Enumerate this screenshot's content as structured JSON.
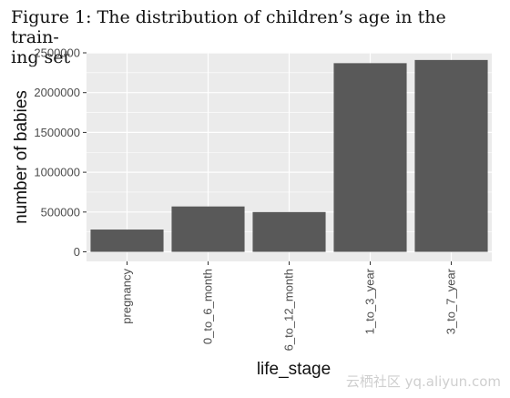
{
  "caption": {
    "line1": "Figure 1: The distribution of children’s age in the train-",
    "line2": "ing set"
  },
  "watermark": "云栖社区 yq.aliyun.com",
  "colors": {
    "panel": "#ebebeb",
    "grid": "#ffffff",
    "bar": "#595959"
  },
  "chart_data": {
    "type": "bar",
    "categories": [
      "pregnancy",
      "0_to_6_month",
      "6_to_12_month",
      "1_to_3_year",
      "3_to_7_year"
    ],
    "values": [
      280000,
      570000,
      500000,
      2370000,
      2410000
    ],
    "title": "",
    "xlabel": "life_stage",
    "ylabel": "number of babies",
    "ylim": [
      -120000,
      2500000
    ],
    "yticks": [
      0,
      500000,
      1000000,
      1500000,
      2000000,
      2500000
    ],
    "ytick_labels": [
      "0",
      "500000",
      "1000000",
      "1500000",
      "2000000",
      "2500000"
    ],
    "grid": true,
    "legend": "none"
  }
}
